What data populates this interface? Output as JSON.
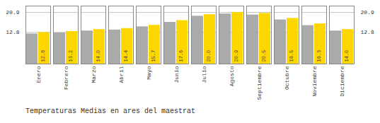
{
  "chart_data": {
    "type": "bar",
    "title": "Temperaturas Medias en ares del maestrat",
    "categories": [
      "Enero",
      "Febrero",
      "Marzo",
      "Abril",
      "Mayo",
      "Junio",
      "Julio",
      "Agosto",
      "Septiembre",
      "Octubre",
      "Noviembre",
      "Diciembre"
    ],
    "series": [
      {
        "color": "#AAAAAA",
        "values": [
          12.2,
          12.6,
          13.4,
          13.8,
          15.1,
          16.9,
          19.4,
          20.3,
          19.9,
          17.9,
          15.6,
          13.4
        ]
      },
      {
        "color": "#FFD700",
        "values": [
          12.8,
          13.2,
          14.0,
          14.4,
          15.7,
          17.6,
          20.0,
          20.9,
          20.5,
          18.5,
          16.3,
          14.0
        ],
        "data_labels": true,
        "value_labels": [
          "12.8",
          "13.2",
          "14.0",
          "14.4",
          "15.7",
          "17.6",
          "20.0",
          "20.9",
          "20.5",
          "18.5",
          "16.3",
          "14.0"
        ]
      }
    ],
    "ylim": [
      0.0,
      23.5
    ],
    "yticks": [
      12.8,
      20.9
    ],
    "y2lim": [
      0.0,
      23.5
    ],
    "y2ticks": [
      12.8,
      20.9
    ],
    "grid": true
  }
}
